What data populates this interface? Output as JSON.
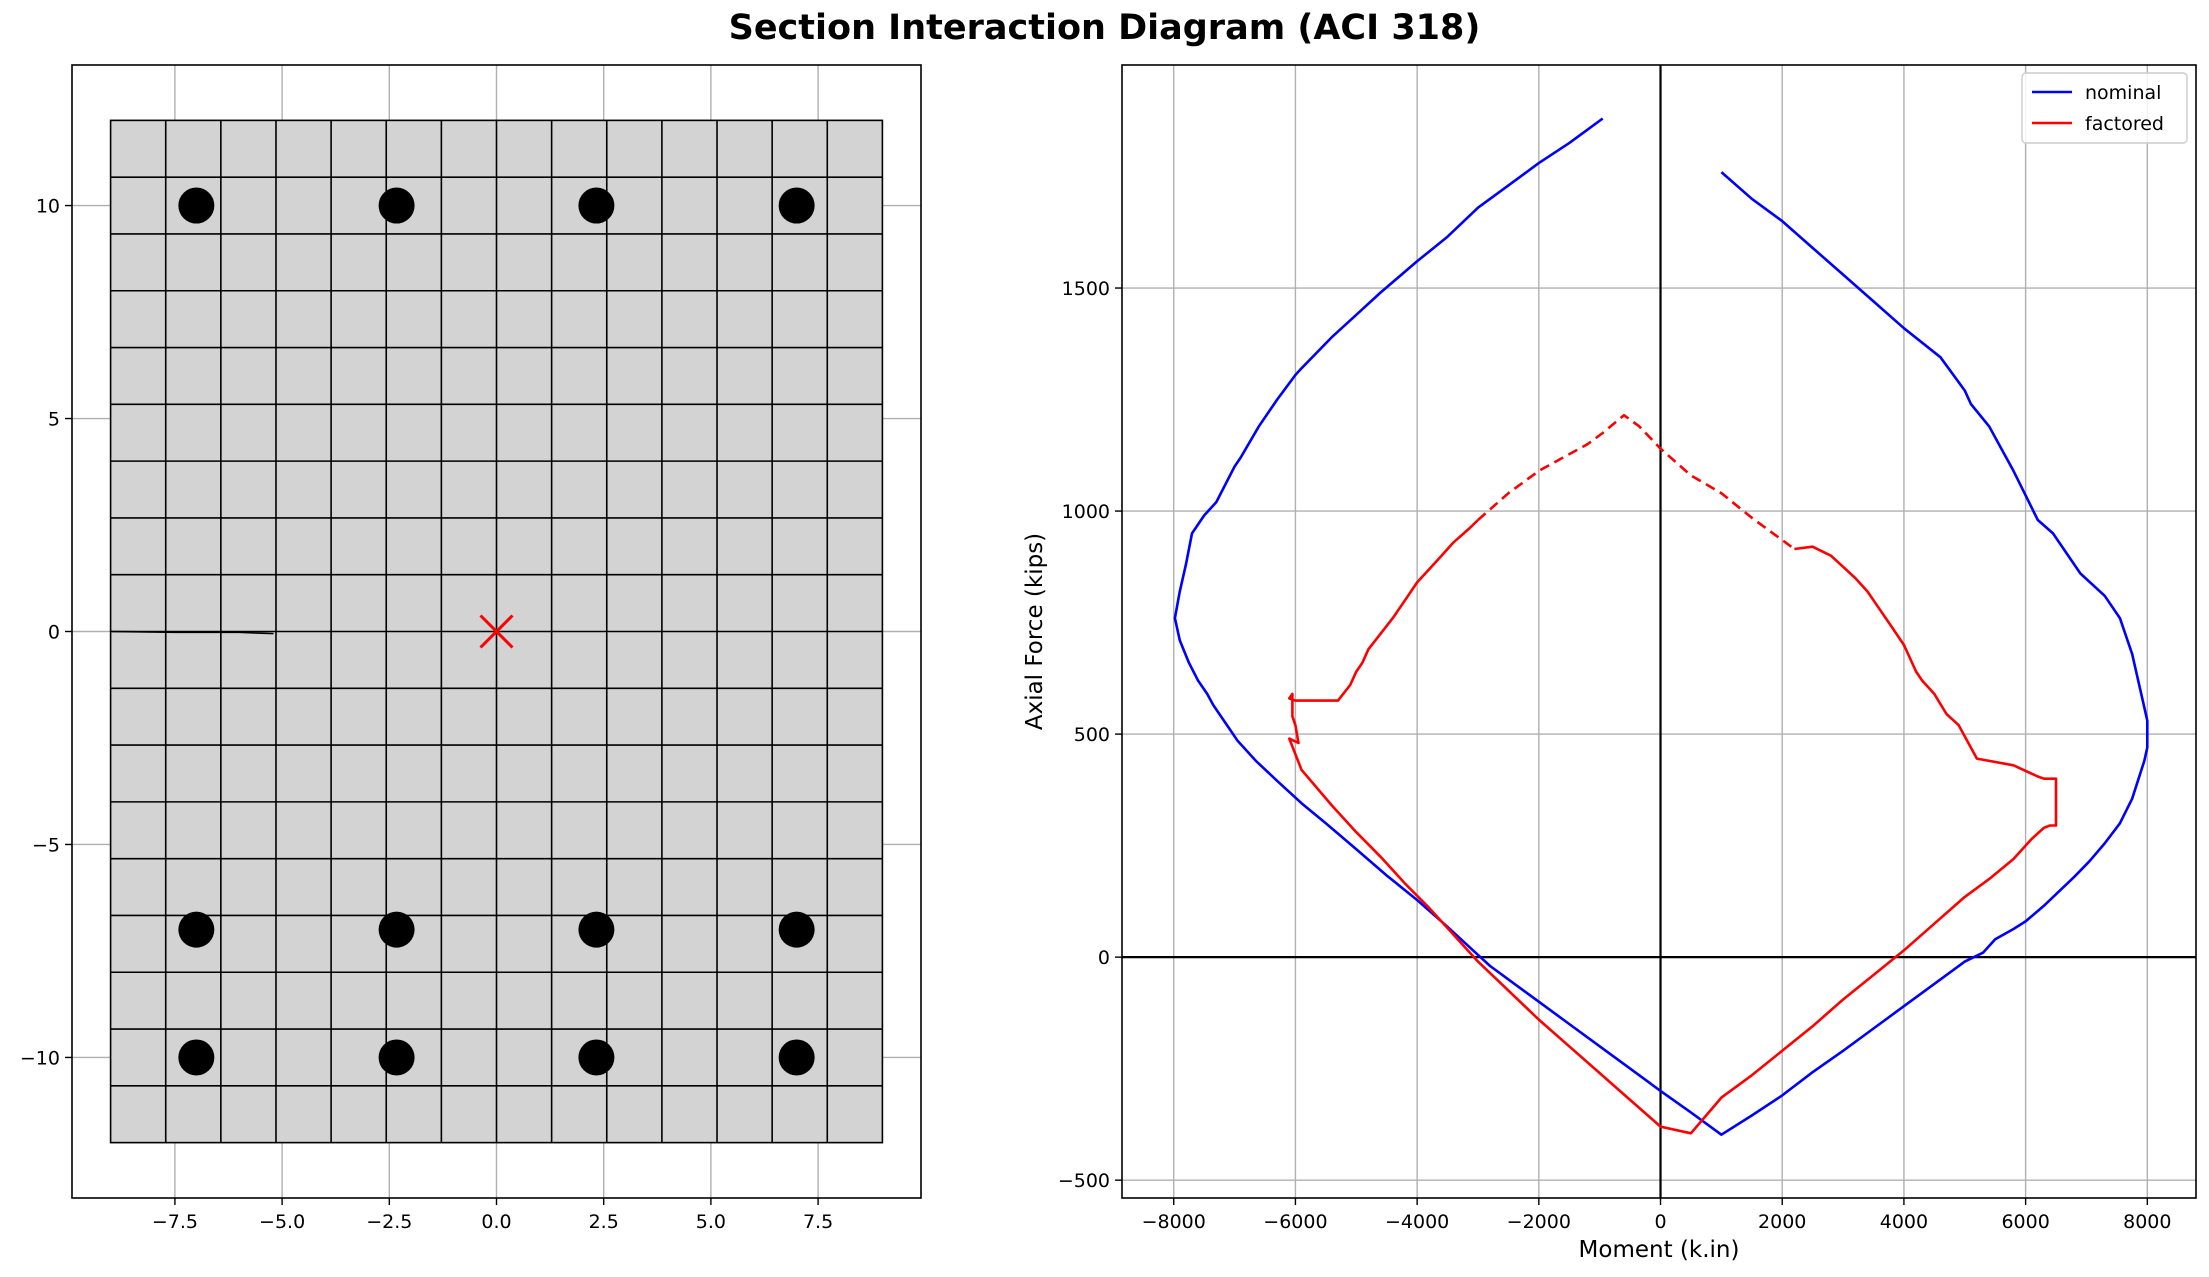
{
  "figure": {
    "title": "Section Interaction Diagram (ACI 318)"
  },
  "chart_data": [
    {
      "type": "scatter",
      "name_role": "section-plot",
      "title": "",
      "xlabel": "",
      "ylabel": "",
      "xlim": [
        -9.9,
        9.9
      ],
      "ylim": [
        -13.3,
        13.3
      ],
      "xticks": [
        -7.5,
        -5.0,
        -2.5,
        0.0,
        2.5,
        5.0,
        7.5
      ],
      "xtick_labels": [
        "−7.5",
        "−5.0",
        "−2.5",
        "0.0",
        "2.5",
        "5.0",
        "7.5"
      ],
      "yticks": [
        -10,
        -5,
        0,
        5,
        10
      ],
      "ytick_labels": [
        "−10",
        "−5",
        "0",
        "5",
        "10"
      ],
      "grid": true,
      "section": {
        "x_range": [
          -9,
          9
        ],
        "y_range": [
          -12,
          12
        ],
        "cols": 14,
        "rows": 18,
        "fill": "#d3d3d3",
        "edge": "#000000"
      },
      "neutral_axis": {
        "x": [
          -9.0,
          -7.5,
          -6.0,
          -5.2
        ],
        "y": [
          0.0,
          -0.02,
          -0.02,
          -0.05
        ]
      },
      "rebar": {
        "color": "#000000",
        "x": [
          -7,
          -2.33,
          2.33,
          7,
          -7,
          -2.33,
          2.33,
          7,
          -7,
          -2.33,
          2.33,
          7
        ],
        "y": [
          10,
          10,
          10,
          10,
          -7,
          -7,
          -7,
          -7,
          -10,
          -10,
          -10,
          -10
        ]
      },
      "centroid": {
        "x": 0,
        "y": 0,
        "marker": "x",
        "color": "#ff0000"
      }
    },
    {
      "type": "line",
      "name_role": "interaction-diagram",
      "title": "",
      "xlabel": "Moment (k.in)",
      "ylabel": "Axial Force (kips)",
      "xlim": [
        -8850,
        8800
      ],
      "ylim": [
        -540,
        2000
      ],
      "xticks": [
        -8000,
        -6000,
        -4000,
        -2000,
        0,
        2000,
        4000,
        6000,
        8000
      ],
      "xtick_labels": [
        "−8000",
        "−6000",
        "−4000",
        "−2000",
        "0",
        "2000",
        "4000",
        "6000",
        "8000"
      ],
      "yticks": [
        -500,
        0,
        500,
        1000,
        1500
      ],
      "ytick_labels": [
        "−500",
        "0",
        "500",
        "1000",
        "1500"
      ],
      "grid": true,
      "legend": {
        "position": "top-right",
        "entries": [
          "nominal",
          "factored"
        ]
      },
      "series": [
        {
          "name": "nominal",
          "color": "#0000ff",
          "style": "solid",
          "x": [
            -950,
            -1500,
            -2000,
            -2500,
            -3000,
            -3500,
            -4000,
            -4600,
            -5000,
            -5400,
            -5900,
            -6000,
            -6300,
            -6600,
            -6900,
            -7000,
            -7300,
            -7500,
            -7700,
            -7800,
            -7900,
            -7980,
            -7900,
            -7750,
            -7600,
            -7450,
            -7350,
            -7100,
            -6950,
            -6650,
            -6300,
            -5900,
            -5500,
            -5000,
            -4500,
            -4000,
            -3500,
            -3000,
            -2800,
            -2500,
            -2000,
            -1500,
            -1000,
            -500,
            0,
            500,
            1000,
            1500,
            2000,
            2500,
            3000,
            3500,
            4000,
            4500,
            5000,
            5300,
            5500,
            5800,
            6000,
            6300,
            6800,
            7050,
            7300,
            7550,
            7750,
            7950,
            8000,
            8000,
            7950,
            7750,
            7550,
            7300,
            6900,
            6450,
            6200,
            5800,
            5600,
            5400,
            5100,
            5000,
            4600,
            4000,
            3500,
            3000,
            2500,
            2000,
            1500,
            1000
          ],
          "y": [
            1880,
            1825,
            1780,
            1730,
            1680,
            1615,
            1560,
            1490,
            1440,
            1390,
            1320,
            1305,
            1250,
            1190,
            1120,
            1100,
            1020,
            990,
            950,
            880,
            820,
            760,
            710,
            660,
            620,
            590,
            565,
            515,
            485,
            440,
            395,
            345,
            300,
            242,
            183,
            128,
            68,
            5,
            -20,
            -50,
            -100,
            -150,
            -200,
            -250,
            -300,
            -348,
            -398,
            -355,
            -310,
            -258,
            -210,
            -160,
            -110,
            -60,
            -10,
            10,
            40,
            63,
            80,
            115,
            180,
            215,
            255,
            300,
            355,
            440,
            470,
            530,
            560,
            680,
            760,
            810,
            860,
            950,
            980,
            1090,
            1140,
            1190,
            1240,
            1270,
            1345,
            1410,
            1470,
            1530,
            1590,
            1650,
            1700,
            1760
          ]
        },
        {
          "name": "factored",
          "color": "#ff0000",
          "style": "solid",
          "x": [
            -3000,
            -3150,
            -3400,
            -3600,
            -3800,
            -4000,
            -4200,
            -4400,
            -4600,
            -4800,
            -4900,
            -5000,
            -5100,
            -5300,
            -5700,
            -6000,
            -6100,
            -6050,
            -6050,
            -6000,
            -5950,
            -6100,
            -5900,
            -5400,
            -5000,
            -4600,
            -4200,
            -3800,
            -3400,
            -3000,
            -2500,
            -2000,
            -1500,
            -1000,
            -500,
            0,
            500,
            1000,
            1500,
            2000,
            2500,
            3000,
            3500,
            4000,
            4500,
            5000,
            5400,
            5800,
            6100,
            6300,
            6400,
            6500,
            6500,
            6300,
            6200,
            5800,
            5200,
            4900,
            4700,
            4500,
            4300,
            4200,
            4000,
            3800,
            3600,
            3400,
            3200,
            3000,
            2800,
            2500,
            2200
          ],
          "y": [
            980,
            960,
            930,
            900,
            870,
            840,
            800,
            760,
            725,
            690,
            660,
            640,
            610,
            575,
            575,
            575,
            580,
            590,
            540,
            520,
            480,
            490,
            420,
            340,
            280,
            225,
            165,
            110,
            50,
            -10,
            -75,
            -140,
            -200,
            -260,
            -320,
            -380,
            -395,
            -315,
            -265,
            -210,
            -155,
            -95,
            -40,
            15,
            75,
            135,
            175,
            220,
            265,
            290,
            295,
            295,
            400,
            400,
            405,
            430,
            445,
            520,
            545,
            590,
            620,
            640,
            700,
            740,
            780,
            820,
            850,
            875,
            900,
            920,
            915
          ]
        },
        {
          "name": "",
          "color": "#ff0000",
          "style": "dashed",
          "x": [
            -3000,
            -2500,
            -2000,
            -1600,
            -1200,
            -950,
            -600,
            -350,
            0,
            500,
            1000,
            1500,
            2000,
            2200
          ],
          "y": [
            980,
            1040,
            1090,
            1120,
            1150,
            1175,
            1215,
            1190,
            1140,
            1080,
            1040,
            985,
            935,
            915
          ]
        }
      ]
    }
  ]
}
